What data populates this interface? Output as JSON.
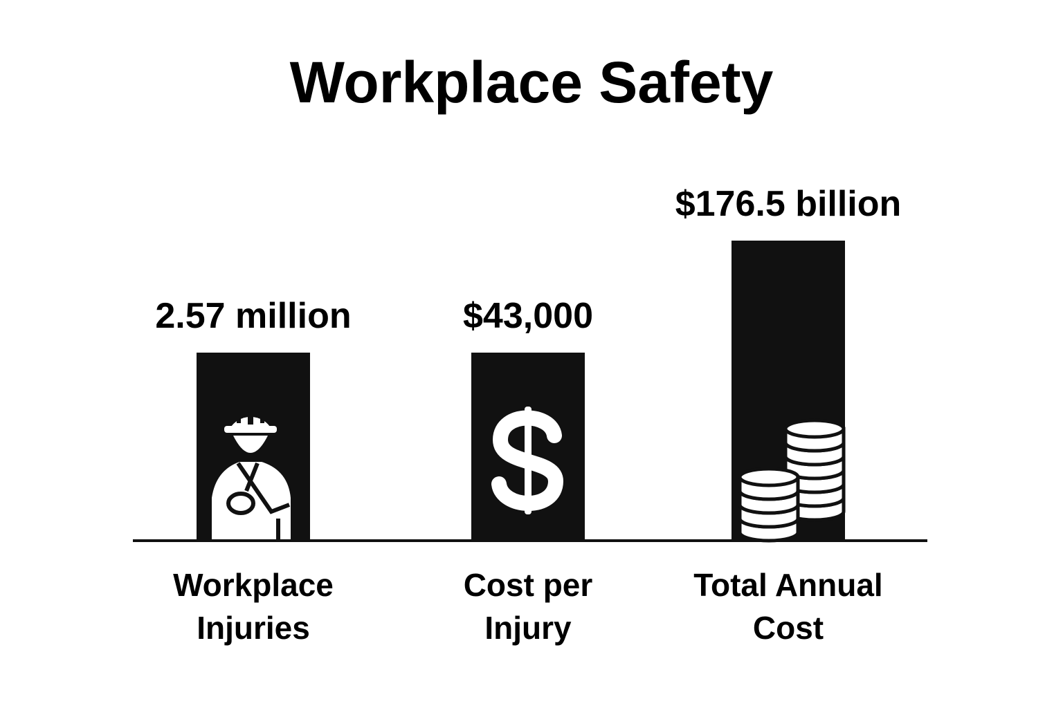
{
  "chart_data": {
    "type": "bar",
    "title": "Workplace Safety",
    "categories": [
      {
        "line1": "Workplace",
        "line2": "Injuries"
      },
      {
        "line1": "Cost per",
        "line2": "Injury"
      },
      {
        "line1": "Total Annual",
        "line2": "Cost"
      }
    ],
    "value_labels": [
      "2.57 million",
      "$43,000",
      "$176.5 billion"
    ],
    "relative_heights": [
      1.0,
      1.0,
      1.6
    ],
    "icons": [
      "injured-worker-icon",
      "dollar-sign-icon",
      "coin-stacks-icon"
    ],
    "grid": false,
    "legend": "none",
    "colors": {
      "bar": "#111111",
      "background": "#ffffff",
      "icon": "#ffffff"
    }
  }
}
